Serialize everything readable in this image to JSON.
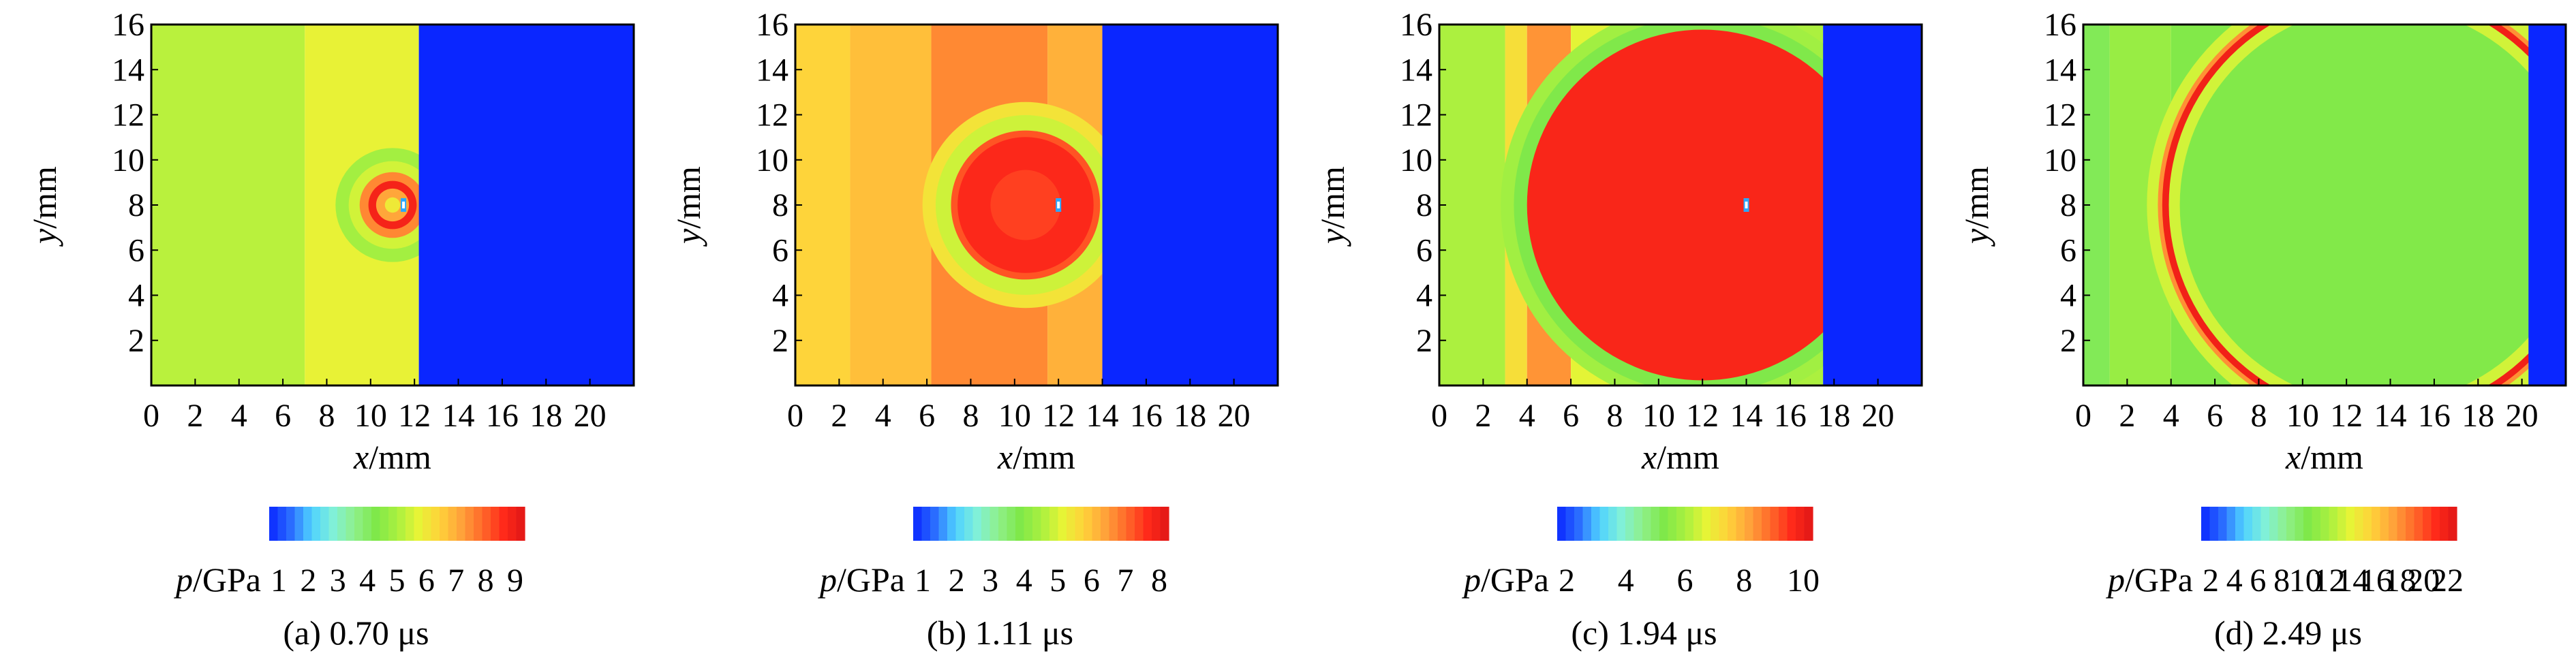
{
  "figure": {
    "colormap": [
      "#0a26ff",
      "#2a6cff",
      "#4fd2ff",
      "#80f0d8",
      "#8ff08a",
      "#7fe84a",
      "#a8f040",
      "#e6f436",
      "#ffd23a",
      "#ffa33a",
      "#ff6a2a",
      "#ff2a1a",
      "#e01616"
    ],
    "axis_x_label": {
      "var": "x",
      "unit": "/mm"
    },
    "axis_y_label": {
      "var": "y",
      "unit": "/mm"
    },
    "colorbar_label": {
      "var": "p",
      "unit": "/GPa"
    }
  },
  "chart_data": [
    {
      "type": "heatmap",
      "title": "(a) 0.70 μs",
      "xlabel": "x/mm",
      "ylabel": "y/mm",
      "xlim": [
        0,
        22
      ],
      "ylim": [
        0,
        16
      ],
      "x_ticks": [
        "0",
        "2",
        "4",
        "6",
        "8",
        "10",
        "12",
        "14",
        "16",
        "18",
        "20"
      ],
      "y_ticks": [
        "2",
        "4",
        "6",
        "8",
        "10",
        "12",
        "14",
        "16"
      ],
      "colorbar": {
        "label": "p/GPa",
        "ticks": [
          "1",
          "2",
          "3",
          "4",
          "5",
          "6",
          "7",
          "8",
          "9"
        ],
        "min": 0.5,
        "max": 9.5
      },
      "field": {
        "background_bands": [
          {
            "x0": 0,
            "x1": 7,
            "value": 5.2
          },
          {
            "x0": 7,
            "x1": 12.2,
            "value": 5.8
          }
        ],
        "unshocked_region": {
          "x0": 12.2,
          "x1": 22,
          "value": 0.5
        },
        "bubble": {
          "cx": 11,
          "cy": 8,
          "rings": [
            {
              "r": 2.6,
              "value": 4.9
            },
            {
              "r": 2.0,
              "value": 5.5
            },
            {
              "r": 1.5,
              "value": 7.6
            },
            {
              "r": 1.1,
              "value": 9.0
            },
            {
              "r": 0.75,
              "value": 7.2
            },
            {
              "r": 0.35,
              "value": 6.0
            }
          ]
        },
        "center_marker": {
          "x": 11.5,
          "y": 8
        }
      }
    },
    {
      "type": "heatmap",
      "title": "(b) 1.11 μs",
      "xlabel": "x/mm",
      "ylabel": "y/mm",
      "xlim": [
        0,
        22
      ],
      "ylim": [
        0,
        16
      ],
      "x_ticks": [
        "0",
        "2",
        "4",
        "6",
        "8",
        "10",
        "12",
        "14",
        "16",
        "18",
        "20"
      ],
      "y_ticks": [
        "2",
        "4",
        "6",
        "8",
        "10",
        "12",
        "14",
        "16"
      ],
      "colorbar": {
        "label": "p/GPa",
        "ticks": [
          "1",
          "2",
          "3",
          "4",
          "5",
          "6",
          "7",
          "8"
        ],
        "min": 0.5,
        "max": 8.5
      },
      "field": {
        "background_bands": [
          {
            "x0": 0,
            "x1": 2.5,
            "value": 5.8
          },
          {
            "x0": 2.5,
            "x1": 6.2,
            "value": 6.1
          },
          {
            "x0": 6.2,
            "x1": 11.5,
            "value": 6.8
          },
          {
            "x0": 11.5,
            "x1": 14,
            "value": 6.3
          }
        ],
        "unshocked_region": {
          "x0": 14,
          "x1": 22,
          "value": 0.5
        },
        "bubble": {
          "cx": 10.5,
          "cy": 8,
          "rings": [
            {
              "r": 4.7,
              "value": 5.5
            },
            {
              "r": 4.1,
              "value": 4.9
            },
            {
              "r": 3.4,
              "value": 7.4
            },
            {
              "r": 3.1,
              "value": 7.9
            },
            {
              "r": 1.6,
              "value": 7.6
            }
          ]
        },
        "center_marker": {
          "x": 12,
          "y": 8
        }
      }
    },
    {
      "type": "heatmap",
      "title": "(c) 1.94 μs",
      "xlabel": "x/mm",
      "ylabel": "y/mm",
      "xlim": [
        0,
        22
      ],
      "ylim": [
        0,
        16
      ],
      "x_ticks": [
        "0",
        "2",
        "4",
        "6",
        "8",
        "10",
        "12",
        "14",
        "16",
        "18",
        "20"
      ],
      "y_ticks": [
        "2",
        "4",
        "6",
        "8",
        "10",
        "12",
        "14",
        "16"
      ],
      "colorbar": {
        "label": "p/GPa",
        "ticks": [
          "2",
          "4",
          "6",
          "8",
          "10"
        ],
        "min": 0.5,
        "max": 11
      },
      "field": {
        "background_bands": [
          {
            "x0": 0,
            "x1": 3,
            "value": 5.8
          },
          {
            "x0": 3,
            "x1": 4,
            "value": 7.2
          },
          {
            "x0": 4,
            "x1": 6,
            "value": 8.6
          },
          {
            "x0": 6,
            "x1": 9,
            "value": 6.6
          },
          {
            "x0": 9,
            "x1": 15,
            "value": 6.2
          },
          {
            "x0": 15,
            "x1": 17.5,
            "value": 5.8
          }
        ],
        "unshocked_region": {
          "x0": 17.5,
          "x1": 22,
          "value": 0.5
        },
        "bubble": {
          "cx": 12,
          "cy": 8,
          "rings": [
            {
              "r": 9.2,
              "value": 5.6
            },
            {
              "r": 8.6,
              "value": 4.9
            },
            {
              "r": 8.0,
              "value": 10.3
            }
          ]
        },
        "center_marker": {
          "x": 14,
          "y": 8
        }
      }
    },
    {
      "type": "heatmap",
      "title": "(d) 2.49 μs",
      "xlabel": "x/mm",
      "ylabel": "y/mm",
      "xlim": [
        0,
        22
      ],
      "ylim": [
        0,
        16
      ],
      "x_ticks": [
        "0",
        "2",
        "4",
        "6",
        "8",
        "10",
        "12",
        "14",
        "16",
        "18",
        "20"
      ],
      "y_ticks": [
        "2",
        "4",
        "6",
        "8",
        "10",
        "12",
        "14",
        "16"
      ],
      "colorbar": {
        "label": "p/GPa",
        "ticks": [
          "2",
          "4",
          "6",
          "8",
          "10",
          "12",
          "14",
          "16",
          "18",
          "20",
          "22"
        ],
        "min": 0.5,
        "max": 23
      },
      "field": {
        "background_bands": [
          {
            "x0": 0,
            "x1": 1.2,
            "value": 9.5
          },
          {
            "x0": 1.2,
            "x1": 4,
            "value": 11.0
          },
          {
            "x0": 4,
            "x1": 12,
            "value": 10.0
          },
          {
            "x0": 12,
            "x1": 19.5,
            "value": 10.5
          },
          {
            "x0": 19.5,
            "x1": 20.3,
            "value": 12.0
          }
        ],
        "unshocked_region": {
          "x0": 20.3,
          "x1": 22,
          "value": 0.5
        },
        "bubble": {
          "cx": 13.5,
          "cy": 8,
          "rings": [
            {
              "r": 10.6,
              "value": 13.0
            },
            {
              "r": 10.1,
              "value": 18.0
            },
            {
              "r": 9.9,
              "value": 22.0
            },
            {
              "r": 9.6,
              "value": 13.0
            },
            {
              "r": 9.1,
              "value": 10.0
            }
          ]
        },
        "center_marker": null
      }
    }
  ]
}
